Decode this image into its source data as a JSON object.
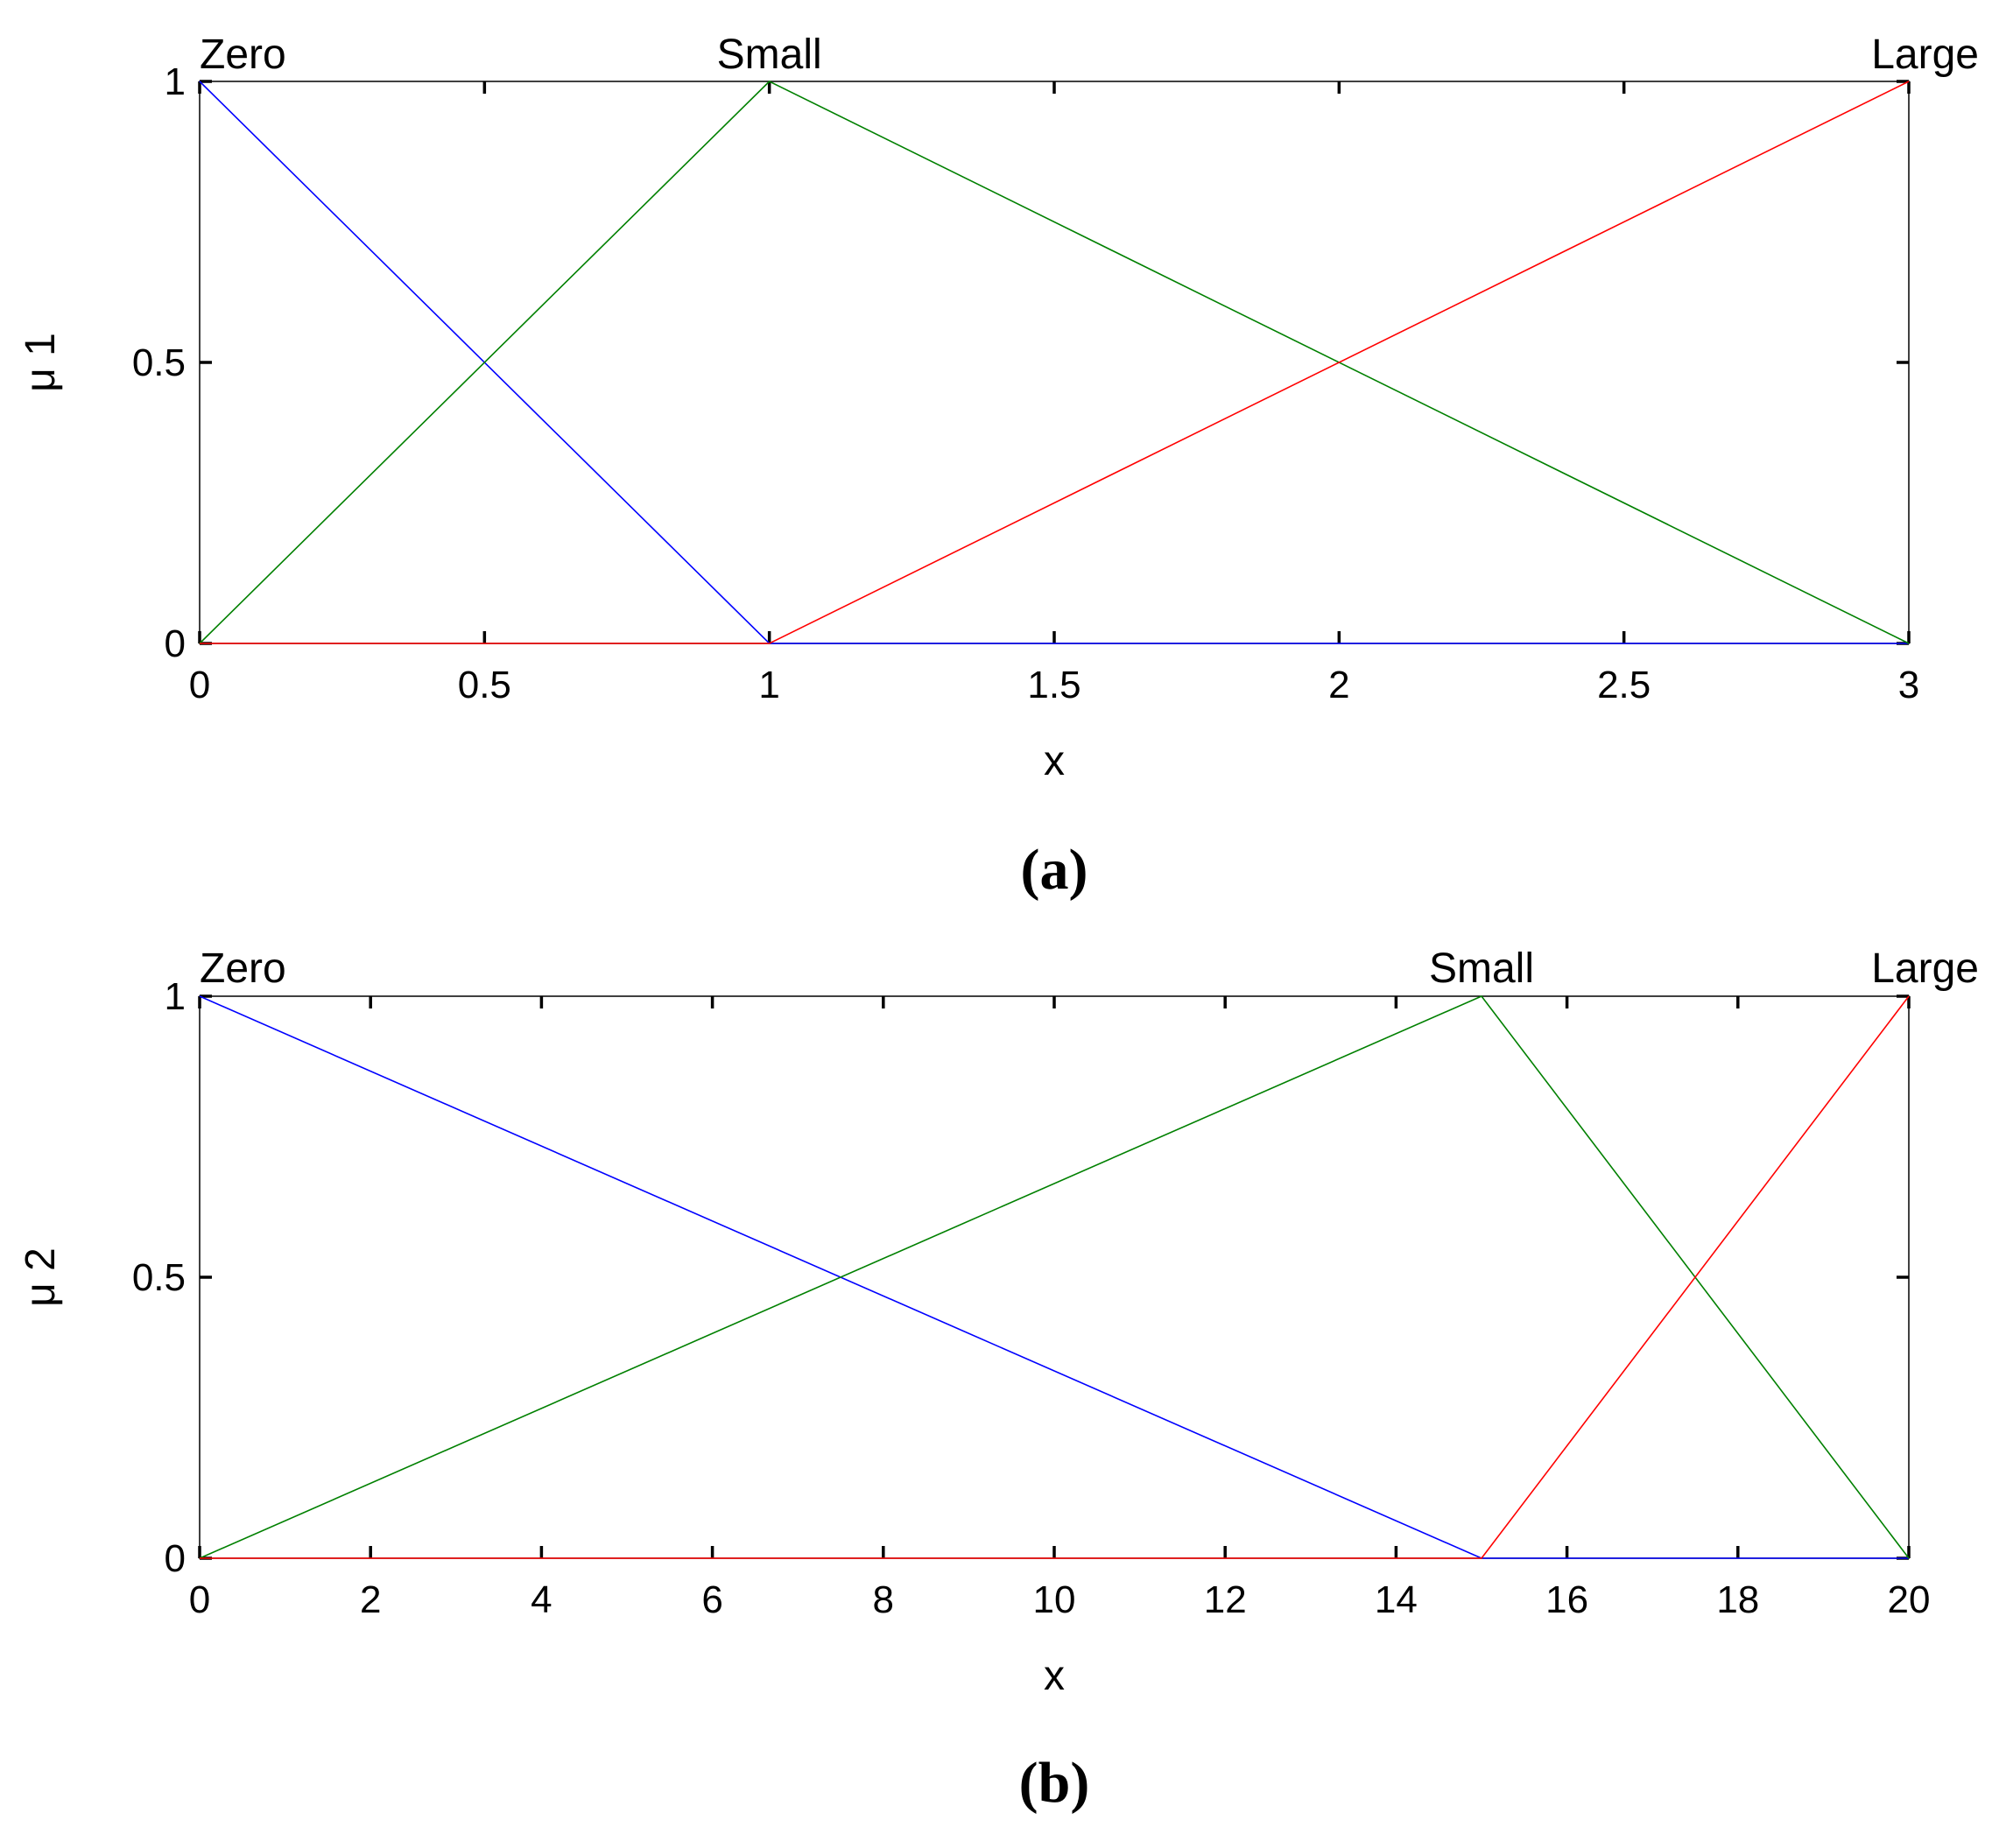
{
  "chart_data": [
    {
      "type": "line",
      "panel_label": "(a)",
      "xlabel": "x",
      "ylabel": "μ 1",
      "xlim": [
        0,
        3
      ],
      "ylim": [
        0,
        1
      ],
      "xticks": [
        "0",
        "0.5",
        "1",
        "1.5",
        "2",
        "2.5",
        "3"
      ],
      "yticks": [
        "0",
        "0.5",
        "1"
      ],
      "grid": false,
      "series": [
        {
          "name": "Zero",
          "color": "#0000ff",
          "x": [
            0,
            1,
            3
          ],
          "y": [
            1,
            0,
            0
          ]
        },
        {
          "name": "Small",
          "color": "#008000",
          "x": [
            0,
            1,
            3
          ],
          "y": [
            0,
            1,
            0
          ]
        },
        {
          "name": "Large",
          "color": "#ff0000",
          "x": [
            0,
            1,
            3
          ],
          "y": [
            0,
            0,
            1
          ]
        }
      ]
    },
    {
      "type": "line",
      "panel_label": "(b)",
      "xlabel": "x",
      "ylabel": "μ 2",
      "xlim": [
        0,
        20
      ],
      "ylim": [
        0,
        1
      ],
      "xticks": [
        "0",
        "2",
        "4",
        "6",
        "8",
        "10",
        "12",
        "14",
        "16",
        "18",
        "20"
      ],
      "yticks": [
        "0",
        "0.5",
        "1"
      ],
      "grid": false,
      "series": [
        {
          "name": "Zero",
          "color": "#0000ff",
          "x": [
            0,
            15,
            20
          ],
          "y": [
            1,
            0,
            0
          ]
        },
        {
          "name": "Small",
          "color": "#008000",
          "x": [
            0,
            15,
            20
          ],
          "y": [
            0,
            1,
            0
          ]
        },
        {
          "name": "Large",
          "color": "#ff0000",
          "x": [
            0,
            15,
            20
          ],
          "y": [
            0,
            0,
            1
          ]
        }
      ]
    }
  ]
}
